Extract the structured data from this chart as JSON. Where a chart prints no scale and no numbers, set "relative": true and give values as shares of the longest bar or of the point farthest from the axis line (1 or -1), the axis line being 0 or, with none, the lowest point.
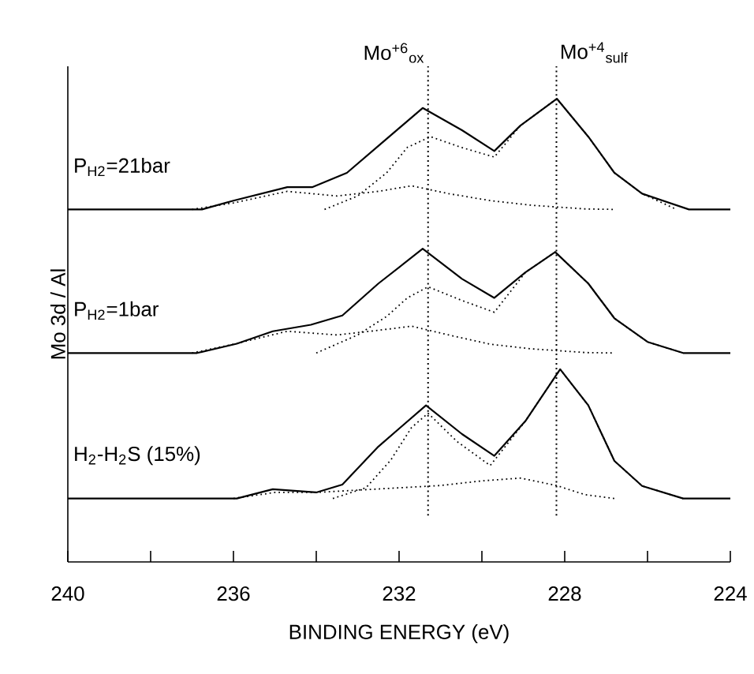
{
  "chart_data": {
    "type": "line",
    "relative": true,
    "xlabel": "BINDING ENERGY (eV)",
    "ylabel": "Mo 3d / Al",
    "xlim": [
      240,
      224
    ],
    "xticks": [
      240,
      {
        "value": 238,
        "label": null
      },
      236,
      {
        "value": 234,
        "label": null
      },
      232,
      {
        "value": 230,
        "label": null
      },
      228,
      {
        "value": 226,
        "label": null
      },
      224
    ],
    "grid": false,
    "marker": "none",
    "ref_lines": [
      {
        "axis": "x",
        "value": 231.3,
        "label": "Mo$^{+6}$$_{ox}$",
        "color": "#000000",
        "line_style": "dotted"
      },
      {
        "axis": "x",
        "value": 228.2,
        "label": "Mo$^{+4}$$_{sulf}$",
        "color": "#000000",
        "line_style": "dotted"
      }
    ],
    "series": [
      {
        "name": "P$_{H2}$=21bar",
        "color": "#000000",
        "line_style": "solid",
        "x": [
          240,
          236.76,
          236,
          234.7,
          234.1,
          233.26,
          232.5,
          231.43,
          230.48,
          229.7,
          229.07,
          228.19,
          227.43,
          226.8,
          226.13,
          225,
          224
        ],
        "values": [
          0.761,
          0.761,
          0.78,
          0.809,
          0.809,
          0.84,
          0.898,
          0.98,
          0.932,
          0.887,
          0.942,
          1.0,
          0.918,
          0.84,
          0.795,
          0.761,
          0.761
        ]
      },
      {
        "color": "#000000",
        "line_style": "dotted",
        "x": [
          233.8,
          233.0,
          232.3,
          231.8,
          231.24,
          230.5,
          229.7,
          229.07,
          228.19,
          227.43,
          226.8,
          226.13,
          225.3
        ],
        "values": [
          0.761,
          0.79,
          0.84,
          0.895,
          0.918,
          0.895,
          0.874,
          0.942,
          1.0,
          0.918,
          0.84,
          0.795,
          0.761
        ]
      },
      {
        "color": "#000000",
        "line_style": "dotted",
        "x": [
          237.0,
          236,
          234.7,
          233.5,
          232.5,
          231.7,
          230.8,
          229.8,
          228.8,
          227.5,
          226.8
        ],
        "values": [
          0.761,
          0.775,
          0.8,
          0.79,
          0.8,
          0.812,
          0.795,
          0.78,
          0.77,
          0.762,
          0.761
        ]
      },
      {
        "name": "P$_{H2}$=1bar",
        "color": "#000000",
        "line_style": "solid",
        "x": [
          240,
          236.88,
          235.92,
          235.05,
          234.13,
          233.37,
          232.5,
          231.43,
          230.48,
          229.7,
          228.95,
          228.23,
          227.43,
          226.8,
          226.0,
          225.14,
          224
        ],
        "values": [
          0.451,
          0.451,
          0.471,
          0.498,
          0.512,
          0.532,
          0.601,
          0.676,
          0.611,
          0.57,
          0.625,
          0.669,
          0.601,
          0.526,
          0.475,
          0.451,
          0.451
        ]
      },
      {
        "color": "#000000",
        "line_style": "dotted",
        "x": [
          234.0,
          233.0,
          232.3,
          231.8,
          231.3,
          230.5,
          229.7,
          228.95,
          228.23,
          227.43,
          226.8,
          226.0,
          225.14
        ],
        "values": [
          0.451,
          0.49,
          0.53,
          0.57,
          0.594,
          0.565,
          0.539,
          0.625,
          0.669,
          0.601,
          0.526,
          0.475,
          0.451
        ]
      },
      {
        "color": "#000000",
        "line_style": "dotted",
        "x": [
          237.0,
          236,
          234.7,
          233.5,
          232.5,
          231.7,
          230.8,
          229.8,
          228.8,
          227.5,
          226.8
        ],
        "values": [
          0.451,
          0.47,
          0.498,
          0.49,
          0.5,
          0.509,
          0.49,
          0.47,
          0.46,
          0.452,
          0.451
        ]
      },
      {
        "name": "H$_{2}$-H$_{2}$S (15%)",
        "color": "#000000",
        "line_style": "solid",
        "x": [
          240,
          235.92,
          235.05,
          234.0,
          233.37,
          232.5,
          231.35,
          230.48,
          229.7,
          228.95,
          228.11,
          227.43,
          226.8,
          226.13,
          225.14,
          224
        ],
        "values": [
          0.137,
          0.137,
          0.157,
          0.15,
          0.167,
          0.249,
          0.338,
          0.276,
          0.229,
          0.304,
          0.416,
          0.338,
          0.218,
          0.164,
          0.137,
          0.137
        ]
      },
      {
        "color": "#000000",
        "line_style": "dotted",
        "x": [
          233.6,
          232.8,
          232.2,
          231.7,
          231.3,
          230.6,
          229.8,
          228.95,
          228.11,
          227.43,
          226.8,
          226.13,
          225.14
        ],
        "values": [
          0.137,
          0.16,
          0.22,
          0.29,
          0.321,
          0.26,
          0.208,
          0.304,
          0.416,
          0.338,
          0.218,
          0.164,
          0.137
        ]
      },
      {
        "color": "#000000",
        "line_style": "dotted",
        "x": [
          236.0,
          235.0,
          234.0,
          233.0,
          232.0,
          231.0,
          230.0,
          229.07,
          228.2,
          227.5,
          226.8
        ],
        "values": [
          0.137,
          0.15,
          0.15,
          0.155,
          0.16,
          0.165,
          0.175,
          0.181,
          0.165,
          0.145,
          0.137
        ]
      }
    ]
  }
}
